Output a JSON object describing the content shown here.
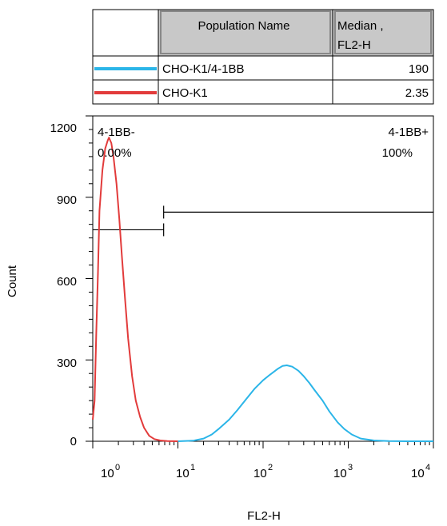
{
  "legend_table": {
    "header_population": "Population Name",
    "header_median_line1": "Median ,",
    "header_median_line2": "FL2-H",
    "rows": [
      {
        "name": "CHO-K1/4-1BB",
        "median": "190",
        "color": "#2BB5E8"
      },
      {
        "name": "CHO-K1",
        "median": "2.35",
        "color": "#E23B3B"
      }
    ]
  },
  "chart_data": {
    "type": "line",
    "xlabel": "FL2-H",
    "ylabel": "Count",
    "x_scale": "log",
    "xlim": [
      1,
      10000
    ],
    "ylim": [
      0,
      1200
    ],
    "x_ticks": [
      {
        "base": "10",
        "exp": "0"
      },
      {
        "base": "10",
        "exp": "1"
      },
      {
        "base": "10",
        "exp": "2"
      },
      {
        "base": "10",
        "exp": "3"
      },
      {
        "base": "10",
        "exp": "4"
      }
    ],
    "y_ticks": [
      "0",
      "300",
      "600",
      "900",
      "1200"
    ],
    "gates": [
      {
        "label": "4-1BB-",
        "percent": "0.00%",
        "x_range": [
          1,
          6.8
        ],
        "count_level": 780
      },
      {
        "label": "4-1BB+",
        "percent": "100%",
        "x_range": [
          6.8,
          10000
        ],
        "count_level": 845
      }
    ],
    "series": [
      {
        "name": "CHO-K1",
        "color": "#E23B3B",
        "x": [
          1.0,
          1.05,
          1.1,
          1.15,
          1.2,
          1.3,
          1.4,
          1.5,
          1.55,
          1.6,
          1.65,
          1.75,
          1.9,
          2.05,
          2.2,
          2.4,
          2.6,
          2.9,
          3.2,
          3.6,
          4.0,
          4.6,
          5.3,
          6.2,
          7.5,
          10
        ],
        "y": [
          80,
          150,
          400,
          620,
          850,
          1000,
          1080,
          1110,
          1120,
          1110,
          1100,
          1050,
          950,
          820,
          680,
          520,
          380,
          240,
          150,
          90,
          50,
          20,
          8,
          3,
          1,
          0
        ]
      },
      {
        "name": "CHO-K1/4-1BB",
        "color": "#2BB5E8",
        "x": [
          10,
          15,
          20,
          25,
          30,
          40,
          50,
          65,
          80,
          100,
          120,
          150,
          170,
          190,
          220,
          260,
          300,
          350,
          400,
          500,
          600,
          750,
          900,
          1100,
          1400,
          2000,
          3000,
          5000,
          10000
        ],
        "y": [
          0,
          2,
          10,
          25,
          45,
          80,
          115,
          160,
          195,
          225,
          245,
          268,
          278,
          280,
          275,
          260,
          240,
          215,
          190,
          150,
          110,
          70,
          45,
          25,
          10,
          3,
          1,
          0,
          0
        ]
      }
    ]
  }
}
